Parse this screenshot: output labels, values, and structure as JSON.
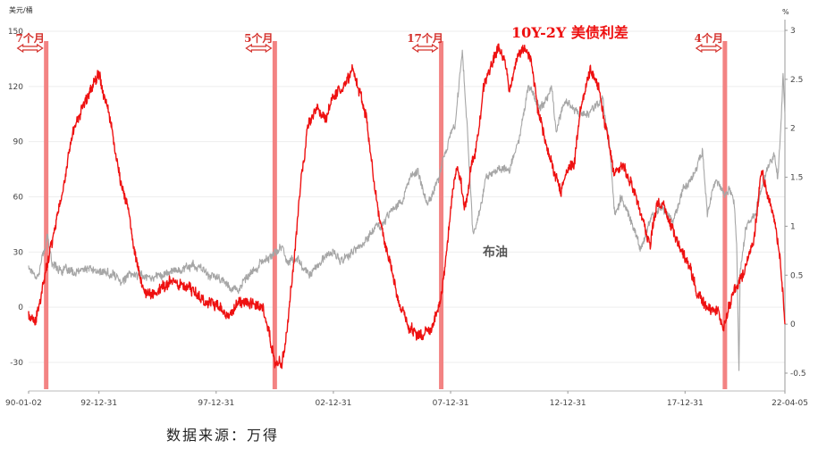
{
  "chart_data": {
    "type": "line",
    "title": "10Y-2Y 美债利差",
    "source": "数据来源：万得",
    "left_axis": {
      "unit": "美元/桶",
      "ticks": [
        150,
        120,
        90,
        60,
        30,
        0,
        -30
      ],
      "range": [
        -45,
        150
      ]
    },
    "right_axis": {
      "unit": "%",
      "ticks": [
        3,
        2.5,
        2,
        1.5,
        1,
        0.5,
        0,
        -0.5
      ],
      "range": [
        -0.6,
        3.0
      ]
    },
    "x_axis": {
      "ticks": [
        "90-01-02",
        "92-12-31",
        "97-12-31",
        "02-12-31",
        "07-12-31",
        "12-12-31",
        "17-12-31",
        "22-04-05"
      ],
      "tick_years": [
        1990.0,
        1993.0,
        1998.0,
        2003.0,
        2008.0,
        2013.0,
        2018.0,
        2022.26
      ],
      "range_years": [
        1990.0,
        2022.26
      ]
    },
    "series": [
      {
        "name": "布油",
        "axis": "left",
        "color": "#a6a6a6",
        "points": [
          [
            1990.0,
            22
          ],
          [
            1990.4,
            17
          ],
          [
            1990.6,
            28
          ],
          [
            1990.8,
            38
          ],
          [
            1991.0,
            24
          ],
          [
            1991.5,
            20
          ],
          [
            1992.0,
            18
          ],
          [
            1992.5,
            21
          ],
          [
            1993.0,
            19
          ],
          [
            1993.5,
            18
          ],
          [
            1994.0,
            15
          ],
          [
            1994.5,
            18
          ],
          [
            1995.0,
            17
          ],
          [
            1995.5,
            17
          ],
          [
            1996.0,
            19
          ],
          [
            1996.5,
            21
          ],
          [
            1997.0,
            23
          ],
          [
            1997.5,
            19
          ],
          [
            1998.0,
            16
          ],
          [
            1998.5,
            12
          ],
          [
            1998.95,
            10
          ],
          [
            1999.5,
            18
          ],
          [
            2000.0,
            25
          ],
          [
            2000.5,
            29
          ],
          [
            2000.8,
            33
          ],
          [
            2001.0,
            26
          ],
          [
            2001.5,
            26
          ],
          [
            2001.9,
            18
          ],
          [
            2002.5,
            25
          ],
          [
            2003.0,
            30
          ],
          [
            2003.3,
            25
          ],
          [
            2003.6,
            28
          ],
          [
            2004.0,
            31
          ],
          [
            2004.5,
            38
          ],
          [
            2004.8,
            45
          ],
          [
            2005.0,
            42
          ],
          [
            2005.5,
            55
          ],
          [
            2005.9,
            57
          ],
          [
            2006.3,
            70
          ],
          [
            2006.6,
            75
          ],
          [
            2007.0,
            55
          ],
          [
            2007.5,
            72
          ],
          [
            2007.9,
            90
          ],
          [
            2008.2,
            100
          ],
          [
            2008.5,
            140
          ],
          [
            2008.7,
            100
          ],
          [
            2008.95,
            40
          ],
          [
            2009.1,
            45
          ],
          [
            2009.5,
            70
          ],
          [
            2010.0,
            75
          ],
          [
            2010.5,
            75
          ],
          [
            2010.9,
            90
          ],
          [
            2011.3,
            120
          ],
          [
            2011.7,
            110
          ],
          [
            2012.0,
            110
          ],
          [
            2012.3,
            120
          ],
          [
            2012.5,
            95
          ],
          [
            2012.8,
            110
          ],
          [
            2013.0,
            112
          ],
          [
            2013.5,
            105
          ],
          [
            2014.0,
            108
          ],
          [
            2014.5,
            112
          ],
          [
            2014.8,
            85
          ],
          [
            2015.0,
            50
          ],
          [
            2015.3,
            60
          ],
          [
            2015.6,
            50
          ],
          [
            2015.9,
            38
          ],
          [
            2016.1,
            30
          ],
          [
            2016.5,
            47
          ],
          [
            2017.0,
            55
          ],
          [
            2017.5,
            47
          ],
          [
            2017.9,
            65
          ],
          [
            2018.3,
            70
          ],
          [
            2018.75,
            85
          ],
          [
            2018.95,
            52
          ],
          [
            2019.3,
            70
          ],
          [
            2019.7,
            60
          ],
          [
            2019.9,
            66
          ],
          [
            2020.1,
            55
          ],
          [
            2020.2,
            33
          ],
          [
            2020.3,
            -35
          ],
          [
            2020.35,
            20
          ],
          [
            2020.6,
            44
          ],
          [
            2021.0,
            52
          ],
          [
            2021.5,
            75
          ],
          [
            2021.8,
            84
          ],
          [
            2021.95,
            70
          ],
          [
            2022.05,
            90
          ],
          [
            2022.18,
            127
          ],
          [
            2022.26,
            105
          ]
        ]
      },
      {
        "name": "10Y-2Y 美债利差",
        "axis": "right",
        "color": "#ee1111",
        "points": [
          [
            1990.0,
            0.1
          ],
          [
            1990.3,
            0.0
          ],
          [
            1990.6,
            0.35
          ],
          [
            1990.85,
            0.7
          ],
          [
            1991.1,
            1.0
          ],
          [
            1991.5,
            1.4
          ],
          [
            1991.9,
            2.0
          ],
          [
            1992.3,
            2.2
          ],
          [
            1992.6,
            2.35
          ],
          [
            1993.0,
            2.6
          ],
          [
            1993.4,
            2.2
          ],
          [
            1993.9,
            1.5
          ],
          [
            1994.2,
            1.2
          ],
          [
            1994.5,
            0.8
          ],
          [
            1994.9,
            0.3
          ],
          [
            1995.3,
            0.3
          ],
          [
            1995.8,
            0.4
          ],
          [
            1996.2,
            0.45
          ],
          [
            1996.6,
            0.4
          ],
          [
            1997.0,
            0.35
          ],
          [
            1997.5,
            0.25
          ],
          [
            1998.0,
            0.2
          ],
          [
            1998.5,
            0.05
          ],
          [
            1998.9,
            0.2
          ],
          [
            1999.5,
            0.25
          ],
          [
            2000.0,
            0.15
          ],
          [
            2000.3,
            -0.15
          ],
          [
            2000.5,
            -0.4
          ],
          [
            2000.8,
            -0.4
          ],
          [
            2001.0,
            -0.1
          ],
          [
            2001.3,
            0.6
          ],
          [
            2001.6,
            1.4
          ],
          [
            2001.9,
            2.0
          ],
          [
            2002.3,
            2.2
          ],
          [
            2002.7,
            2.1
          ],
          [
            2003.0,
            2.35
          ],
          [
            2003.4,
            2.4
          ],
          [
            2003.8,
            2.6
          ],
          [
            2004.0,
            2.5
          ],
          [
            2004.4,
            2.1
          ],
          [
            2004.8,
            1.3
          ],
          [
            2005.2,
            0.8
          ],
          [
            2005.6,
            0.4
          ],
          [
            2005.95,
            0.1
          ],
          [
            2006.3,
            -0.05
          ],
          [
            2006.6,
            -0.1
          ],
          [
            2007.0,
            -0.05
          ],
          [
            2007.3,
            0.0
          ],
          [
            2007.6,
            0.3
          ],
          [
            2007.9,
            0.9
          ],
          [
            2008.1,
            1.4
          ],
          [
            2008.3,
            1.6
          ],
          [
            2008.6,
            1.2
          ],
          [
            2008.9,
            1.6
          ],
          [
            2009.1,
            1.8
          ],
          [
            2009.4,
            2.4
          ],
          [
            2009.8,
            2.7
          ],
          [
            2010.2,
            2.8
          ],
          [
            2010.5,
            2.4
          ],
          [
            2010.9,
            2.75
          ],
          [
            2011.2,
            2.8
          ],
          [
            2011.5,
            2.6
          ],
          [
            2011.8,
            2.1
          ],
          [
            2012.1,
            1.8
          ],
          [
            2012.4,
            1.55
          ],
          [
            2012.7,
            1.4
          ],
          [
            2013.0,
            1.6
          ],
          [
            2013.3,
            1.7
          ],
          [
            2013.6,
            2.3
          ],
          [
            2013.95,
            2.6
          ],
          [
            2014.3,
            2.4
          ],
          [
            2014.6,
            2.0
          ],
          [
            2014.95,
            1.6
          ],
          [
            2015.3,
            1.6
          ],
          [
            2015.8,
            1.4
          ],
          [
            2016.2,
            1.05
          ],
          [
            2016.5,
            0.8
          ],
          [
            2016.8,
            1.2
          ],
          [
            2017.0,
            1.25
          ],
          [
            2017.4,
            1.0
          ],
          [
            2017.8,
            0.75
          ],
          [
            2018.1,
            0.65
          ],
          [
            2018.5,
            0.35
          ],
          [
            2018.9,
            0.2
          ],
          [
            2019.2,
            0.15
          ],
          [
            2019.45,
            0.1
          ],
          [
            2019.65,
            -0.05
          ],
          [
            2019.9,
            0.2
          ],
          [
            2020.2,
            0.4
          ],
          [
            2020.6,
            0.55
          ],
          [
            2020.9,
            0.8
          ],
          [
            2021.1,
            1.2
          ],
          [
            2021.25,
            1.55
          ],
          [
            2021.5,
            1.3
          ],
          [
            2021.8,
            1.1
          ],
          [
            2022.0,
            0.8
          ],
          [
            2022.15,
            0.4
          ],
          [
            2022.26,
            0.0
          ]
        ]
      }
    ],
    "inversion_periods": [
      {
        "label": "7个月",
        "year": 1990.75
      },
      {
        "label": "5个月",
        "year": 2000.5
      },
      {
        "label": "17个月",
        "year": 2007.6
      },
      {
        "label": "4个月",
        "year": 2019.7
      }
    ],
    "annotations": {
      "oil_label": "布油"
    }
  }
}
